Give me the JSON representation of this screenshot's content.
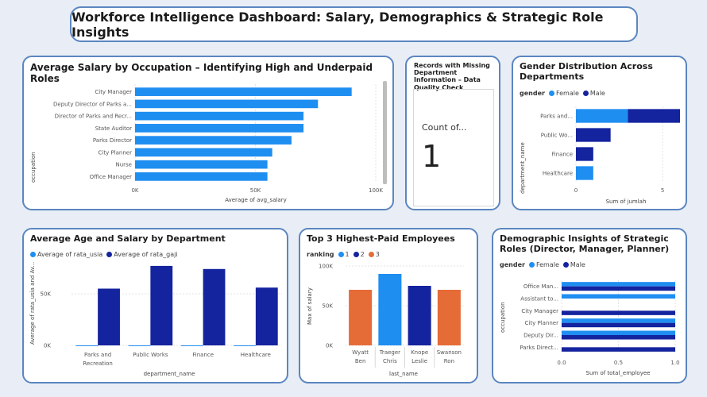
{
  "header": {
    "title": "Workforce Intelligence Dashboard: Salary, Demographics & Strategic Role Insights"
  },
  "colors": {
    "light_blue": "#1f8ef1",
    "dark_blue": "#14239e",
    "orange": "#e66c37",
    "border": "#5b86c0"
  },
  "occupation_chart": {
    "title": "Average Salary by Occupation – Identifying High and Underpaid Roles",
    "y_axis_label": "occupation",
    "x_axis_label": "Average of avg_salary",
    "ticks": [
      "0K",
      "50K",
      "100K"
    ]
  },
  "missing_card": {
    "title": "Records with Missing Department Information – Data Quality Check",
    "label": "Count of...",
    "value": "1"
  },
  "gender_dept_chart": {
    "title": "Gender Distribution Across Departments",
    "legend_title": "gender",
    "legend": [
      "Female",
      "Male"
    ],
    "y_axis_label": "department_name",
    "x_axis_label": "Sum of jumlah",
    "ticks": [
      "0",
      "5"
    ]
  },
  "age_salary_chart": {
    "title": "Average Age and Salary by Department",
    "legend": [
      "Average of rata_usia",
      "Average of rata_gaji"
    ],
    "y_axis_label": "Average of rata_usia and Av...",
    "x_axis_label": "department_name",
    "ticks": [
      "0K",
      "50K"
    ]
  },
  "top3_chart": {
    "title": "Top 3 Highest-Paid Employees",
    "legend_title": "ranking",
    "legend": [
      "1",
      "2",
      "3"
    ],
    "y_axis_label": "Max of salary",
    "x_axis_label": "last_name",
    "ticks": [
      "0K",
      "50K",
      "100K"
    ]
  },
  "strategic_chart": {
    "title": "Demographic Insights of Strategic Roles (Director, Manager, Planner)",
    "legend_title": "gender",
    "legend": [
      "Female",
      "Male"
    ],
    "y_axis_label": "occupation",
    "x_axis_label": "Sum of total_employee",
    "ticks": [
      "0.0",
      "0.5",
      "1.0"
    ]
  },
  "chart_data": [
    {
      "type": "bar",
      "orientation": "horizontal",
      "title": "Average Salary by Occupation – Identifying High and Underpaid Roles",
      "xlabel": "Average of avg_salary",
      "ylabel": "occupation",
      "xlim": [
        0,
        100000
      ],
      "categories": [
        "City Manager",
        "Deputy Director of Parks a...",
        "Director of Parks and Recr...",
        "State Auditor",
        "Parks Director",
        "City Planner",
        "Nurse",
        "Office Manager"
      ],
      "values": [
        90000,
        76000,
        70000,
        70000,
        65000,
        57000,
        55000,
        55000
      ]
    },
    {
      "type": "bar",
      "orientation": "horizontal",
      "stacked": true,
      "title": "Gender Distribution Across Departments",
      "xlabel": "Sum of jumlah",
      "ylabel": "department_name",
      "xlim": [
        0,
        6
      ],
      "categories": [
        "Parks and...",
        "Public Wo...",
        "Finance",
        "Healthcare"
      ],
      "series": [
        {
          "name": "Female",
          "values": [
            3,
            0,
            0,
            1
          ]
        },
        {
          "name": "Male",
          "values": [
            3,
            2,
            1,
            0
          ]
        }
      ]
    },
    {
      "type": "bar",
      "title": "Average Age and Salary by Department",
      "xlabel": "department_name",
      "ylabel": "Average of rata_usia and Av...",
      "ylim": [
        0,
        80000
      ],
      "categories": [
        "Parks and Recreation",
        "Public Works",
        "Finance",
        "Healthcare"
      ],
      "series": [
        {
          "name": "Average of rata_usia",
          "values": [
            36,
            40,
            38,
            42
          ]
        },
        {
          "name": "Average of rata_gaji",
          "values": [
            55000,
            77000,
            74000,
            56000
          ]
        }
      ]
    },
    {
      "type": "bar",
      "title": "Top 3 Highest-Paid Employees",
      "xlabel": "last_name",
      "ylabel": "Max of salary",
      "ylim": [
        0,
        100000
      ],
      "categories": [
        "Wyatt Ben",
        "Traeger Chris",
        "Knope Leslie",
        "Swanson Ron"
      ],
      "values": [
        70000,
        90000,
        75000,
        70000
      ],
      "ranking": [
        "3",
        "1",
        "2",
        "3"
      ]
    },
    {
      "type": "bar",
      "orientation": "horizontal",
      "title": "Demographic Insights of Strategic Roles (Director, Manager, Planner)",
      "xlabel": "Sum of total_employee",
      "ylabel": "occupation",
      "xlim": [
        0,
        1
      ],
      "categories": [
        "Office Man...",
        "Assistant to...",
        "City Manager",
        "City Planner",
        "Deputy Dir...",
        "Parks Direct..."
      ],
      "series": [
        {
          "name": "Female",
          "values": [
            1,
            1,
            0,
            1,
            1,
            0
          ]
        },
        {
          "name": "Male",
          "values": [
            1,
            0,
            1,
            1,
            1,
            1
          ]
        }
      ]
    }
  ]
}
